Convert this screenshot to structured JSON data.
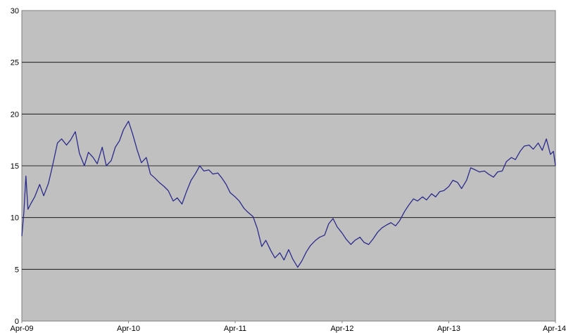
{
  "chart_data": {
    "type": "line",
    "title": "",
    "xlabel": "",
    "ylabel": "",
    "ylim": [
      0,
      30
    ],
    "xlim": [
      "Apr-09",
      "Apr-14"
    ],
    "y_ticks": [
      "0",
      "5",
      "10",
      "15",
      "20",
      "25",
      "30"
    ],
    "x_ticks": [
      "Apr-09",
      "Apr-10",
      "Apr-11",
      "Apr-12",
      "Apr-13",
      "Apr-14"
    ],
    "grid": true,
    "legend": "none",
    "plot_background": "#C0C0C0",
    "line_color": "#2B2B8C",
    "series": [
      {
        "points": [
          [
            "2009-04-01",
            8.2
          ],
          [
            "2009-04-08",
            10.5
          ],
          [
            "2009-04-15",
            14.0
          ],
          [
            "2009-04-22",
            10.8
          ],
          [
            "2009-05-01",
            11.3
          ],
          [
            "2009-05-15",
            12.0
          ],
          [
            "2009-06-01",
            13.2
          ],
          [
            "2009-06-15",
            12.1
          ],
          [
            "2009-07-01",
            13.3
          ],
          [
            "2009-07-15",
            15.0
          ],
          [
            "2009-08-01",
            17.2
          ],
          [
            "2009-08-15",
            17.6
          ],
          [
            "2009-09-01",
            17.0
          ],
          [
            "2009-09-15",
            17.5
          ],
          [
            "2009-10-01",
            18.3
          ],
          [
            "2009-10-15",
            16.2
          ],
          [
            "2009-11-01",
            15.0
          ],
          [
            "2009-11-15",
            16.3
          ],
          [
            "2009-12-01",
            15.8
          ],
          [
            "2009-12-15",
            15.2
          ],
          [
            "2010-01-01",
            16.8
          ],
          [
            "2010-01-15",
            15.0
          ],
          [
            "2010-02-01",
            15.5
          ],
          [
            "2010-02-15",
            16.8
          ],
          [
            "2010-03-01",
            17.4
          ],
          [
            "2010-03-15",
            18.5
          ],
          [
            "2010-04-01",
            19.3
          ],
          [
            "2010-04-15",
            18.1
          ],
          [
            "2010-05-01",
            16.5
          ],
          [
            "2010-05-15",
            15.3
          ],
          [
            "2010-06-01",
            15.8
          ],
          [
            "2010-06-15",
            14.2
          ],
          [
            "2010-07-01",
            13.8
          ],
          [
            "2010-07-15",
            13.4
          ],
          [
            "2010-08-01",
            13.0
          ],
          [
            "2010-08-15",
            12.6
          ],
          [
            "2010-09-01",
            11.6
          ],
          [
            "2010-09-15",
            11.9
          ],
          [
            "2010-10-01",
            11.3
          ],
          [
            "2010-10-15",
            12.4
          ],
          [
            "2010-11-01",
            13.6
          ],
          [
            "2010-11-15",
            14.2
          ],
          [
            "2010-12-01",
            15.0
          ],
          [
            "2010-12-15",
            14.5
          ],
          [
            "2011-01-01",
            14.6
          ],
          [
            "2011-01-15",
            14.2
          ],
          [
            "2011-02-01",
            14.3
          ],
          [
            "2011-02-15",
            13.8
          ],
          [
            "2011-03-01",
            13.2
          ],
          [
            "2011-03-15",
            12.4
          ],
          [
            "2011-04-01",
            12.0
          ],
          [
            "2011-04-15",
            11.6
          ],
          [
            "2011-05-01",
            10.9
          ],
          [
            "2011-05-15",
            10.5
          ],
          [
            "2011-06-01",
            10.1
          ],
          [
            "2011-06-15",
            9.0
          ],
          [
            "2011-07-01",
            7.2
          ],
          [
            "2011-07-15",
            7.8
          ],
          [
            "2011-08-01",
            6.8
          ],
          [
            "2011-08-15",
            6.1
          ],
          [
            "2011-09-01",
            6.6
          ],
          [
            "2011-09-15",
            5.9
          ],
          [
            "2011-10-01",
            6.9
          ],
          [
            "2011-10-15",
            6.0
          ],
          [
            "2011-11-01",
            5.2
          ],
          [
            "2011-11-15",
            5.8
          ],
          [
            "2011-12-01",
            6.7
          ],
          [
            "2011-12-15",
            7.3
          ],
          [
            "2012-01-01",
            7.8
          ],
          [
            "2012-01-15",
            8.1
          ],
          [
            "2012-02-01",
            8.3
          ],
          [
            "2012-02-15",
            9.4
          ],
          [
            "2012-03-01",
            9.9
          ],
          [
            "2012-03-15",
            9.1
          ],
          [
            "2012-04-01",
            8.5
          ],
          [
            "2012-04-15",
            7.9
          ],
          [
            "2012-05-01",
            7.4
          ],
          [
            "2012-05-15",
            7.8
          ],
          [
            "2012-06-01",
            8.1
          ],
          [
            "2012-06-15",
            7.6
          ],
          [
            "2012-07-01",
            7.4
          ],
          [
            "2012-07-15",
            7.9
          ],
          [
            "2012-08-01",
            8.6
          ],
          [
            "2012-08-15",
            9.0
          ],
          [
            "2012-09-01",
            9.3
          ],
          [
            "2012-09-15",
            9.5
          ],
          [
            "2012-10-01",
            9.2
          ],
          [
            "2012-10-15",
            9.7
          ],
          [
            "2012-11-01",
            10.6
          ],
          [
            "2012-11-15",
            11.2
          ],
          [
            "2012-12-01",
            11.8
          ],
          [
            "2012-12-15",
            11.6
          ],
          [
            "2013-01-01",
            12.0
          ],
          [
            "2013-01-15",
            11.7
          ],
          [
            "2013-02-01",
            12.3
          ],
          [
            "2013-02-15",
            12.0
          ],
          [
            "2013-03-01",
            12.5
          ],
          [
            "2013-03-15",
            12.6
          ],
          [
            "2013-04-01",
            13.0
          ],
          [
            "2013-04-15",
            13.6
          ],
          [
            "2013-05-01",
            13.4
          ],
          [
            "2013-05-15",
            12.8
          ],
          [
            "2013-06-01",
            13.6
          ],
          [
            "2013-06-15",
            14.8
          ],
          [
            "2013-07-01",
            14.6
          ],
          [
            "2013-07-15",
            14.4
          ],
          [
            "2013-08-01",
            14.5
          ],
          [
            "2013-08-15",
            14.2
          ],
          [
            "2013-09-01",
            13.9
          ],
          [
            "2013-09-15",
            14.4
          ],
          [
            "2013-10-01",
            14.5
          ],
          [
            "2013-10-15",
            15.4
          ],
          [
            "2013-11-01",
            15.8
          ],
          [
            "2013-11-15",
            15.6
          ],
          [
            "2013-12-01",
            16.4
          ],
          [
            "2013-12-15",
            16.9
          ],
          [
            "2014-01-01",
            17.0
          ],
          [
            "2014-01-15",
            16.6
          ],
          [
            "2014-02-01",
            17.2
          ],
          [
            "2014-02-15",
            16.5
          ],
          [
            "2014-03-01",
            17.6
          ],
          [
            "2014-03-15",
            16.1
          ],
          [
            "2014-03-25",
            16.4
          ],
          [
            "2014-04-01",
            15.0
          ]
        ]
      }
    ]
  }
}
